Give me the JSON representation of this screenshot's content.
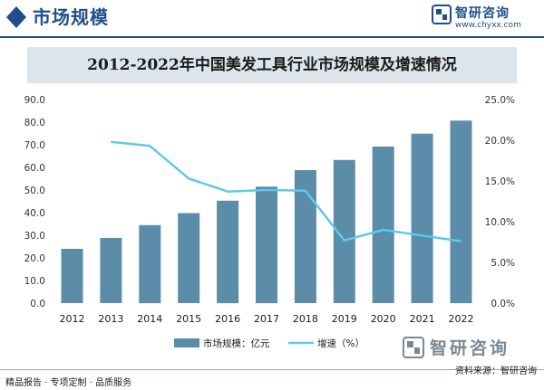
{
  "header": {
    "title": "市场规模",
    "brand_name": "智研咨询",
    "brand_url": "www.chyxx.com"
  },
  "chart_data": {
    "type": "bar",
    "title": "2012-2022年中国美发工具行业市场规模及增速情况",
    "categories": [
      "2012",
      "2013",
      "2014",
      "2015",
      "2016",
      "2017",
      "2018",
      "2019",
      "2020",
      "2021",
      "2022"
    ],
    "series": [
      {
        "name": "市场规模：亿元",
        "type": "bar",
        "axis": "left",
        "color": "#5b8ca8",
        "values": [
          24.0,
          28.8,
          34.5,
          39.8,
          45.3,
          51.5,
          58.8,
          63.3,
          69.2,
          74.9,
          80.7
        ]
      },
      {
        "name": "增速（%）",
        "type": "line",
        "axis": "right",
        "color": "#5ec8ee",
        "values": [
          null,
          19.8,
          19.3,
          15.3,
          13.7,
          13.9,
          13.8,
          7.7,
          9.0,
          8.3,
          7.6
        ]
      }
    ],
    "y_left": {
      "min": 0,
      "max": 90,
      "step": 10,
      "ticks": [
        "0.0",
        "10.0",
        "20.0",
        "30.0",
        "40.0",
        "50.0",
        "60.0",
        "70.0",
        "80.0",
        "90.0"
      ]
    },
    "y_right": {
      "min": 0,
      "max": 25,
      "step": 5,
      "ticks": [
        "0.0%",
        "5.0%",
        "10.0%",
        "15.0%",
        "20.0%",
        "25.0%"
      ]
    },
    "grid": false,
    "legend_position": "bottom-center"
  },
  "footer": {
    "left": "精品报告 · 专项定制 · 品质服务",
    "right": "资料来源：智研咨询"
  },
  "colors": {
    "brand": "#1e4f8c",
    "bar": "#5b8ca8",
    "line": "#5ec8ee",
    "title_band": "#dde5ec"
  }
}
